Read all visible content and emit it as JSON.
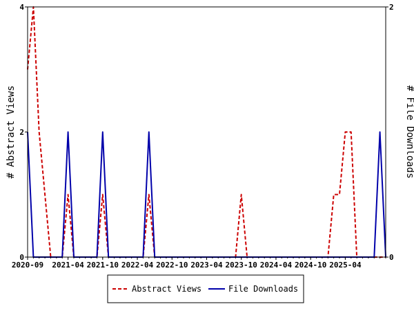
{
  "chart_data": {
    "type": "line",
    "title": "",
    "xlabel": "",
    "ylabel_left": "# Abstract Views",
    "ylabel_right": "# File Downloads",
    "ylim_left": [
      0,
      4
    ],
    "ylim_right": [
      0,
      2
    ],
    "y_ticks_left": [
      "0",
      "2",
      "4"
    ],
    "y_ticks_right": [
      "0",
      "2"
    ],
    "x_tick_labels": [
      "2020-09",
      "2021-04",
      "2021-10",
      "2022-04",
      "2022-10",
      "2023-04",
      "2023-10",
      "2024-04",
      "2024-10",
      "2025-04"
    ],
    "x_range_months": [
      "2020-09",
      "2025-11"
    ],
    "legend_position": "bottom",
    "series": [
      {
        "name": "Abstract Views",
        "axis": "left",
        "color": "#cc0000",
        "style": "dashed",
        "points": [
          [
            "2020-09",
            3
          ],
          [
            "2020-10",
            4
          ],
          [
            "2020-11",
            2
          ],
          [
            "2020-12",
            1
          ],
          [
            "2021-01",
            0
          ],
          [
            "2021-02",
            0
          ],
          [
            "2021-03",
            0
          ],
          [
            "2021-04",
            1
          ],
          [
            "2021-05",
            0
          ],
          [
            "2021-06",
            0
          ],
          [
            "2021-07",
            0
          ],
          [
            "2021-08",
            0
          ],
          [
            "2021-09",
            0
          ],
          [
            "2021-10",
            1
          ],
          [
            "2021-11",
            0
          ],
          [
            "2021-12",
            0
          ],
          [
            "2022-01",
            0
          ],
          [
            "2022-02",
            0
          ],
          [
            "2022-03",
            0
          ],
          [
            "2022-04",
            0
          ],
          [
            "2022-05",
            0
          ],
          [
            "2022-06",
            1
          ],
          [
            "2022-07",
            0
          ],
          [
            "2023-09",
            0
          ],
          [
            "2023-10",
            1
          ],
          [
            "2023-11",
            0
          ],
          [
            "2025-01",
            0
          ],
          [
            "2025-02",
            1
          ],
          [
            "2025-03",
            1
          ],
          [
            "2025-04",
            2
          ],
          [
            "2025-05",
            2
          ],
          [
            "2025-06",
            0
          ],
          [
            "2025-07",
            0
          ],
          [
            "2025-08",
            0
          ],
          [
            "2025-09",
            0
          ],
          [
            "2025-10",
            0
          ],
          [
            "2025-11",
            0
          ]
        ]
      },
      {
        "name": "File Downloads",
        "axis": "right",
        "color": "#0000aa",
        "style": "solid",
        "points": [
          [
            "2020-09",
            1
          ],
          [
            "2020-10",
            0
          ],
          [
            "2021-02",
            0
          ],
          [
            "2021-03",
            0
          ],
          [
            "2021-04",
            1
          ],
          [
            "2021-05",
            0
          ],
          [
            "2021-09",
            0
          ],
          [
            "2021-10",
            1
          ],
          [
            "2021-11",
            0
          ],
          [
            "2022-05",
            0
          ],
          [
            "2022-06",
            1
          ],
          [
            "2022-07",
            0
          ],
          [
            "2025-09",
            0
          ],
          [
            "2025-10",
            1
          ],
          [
            "2025-11",
            0
          ]
        ]
      }
    ]
  }
}
